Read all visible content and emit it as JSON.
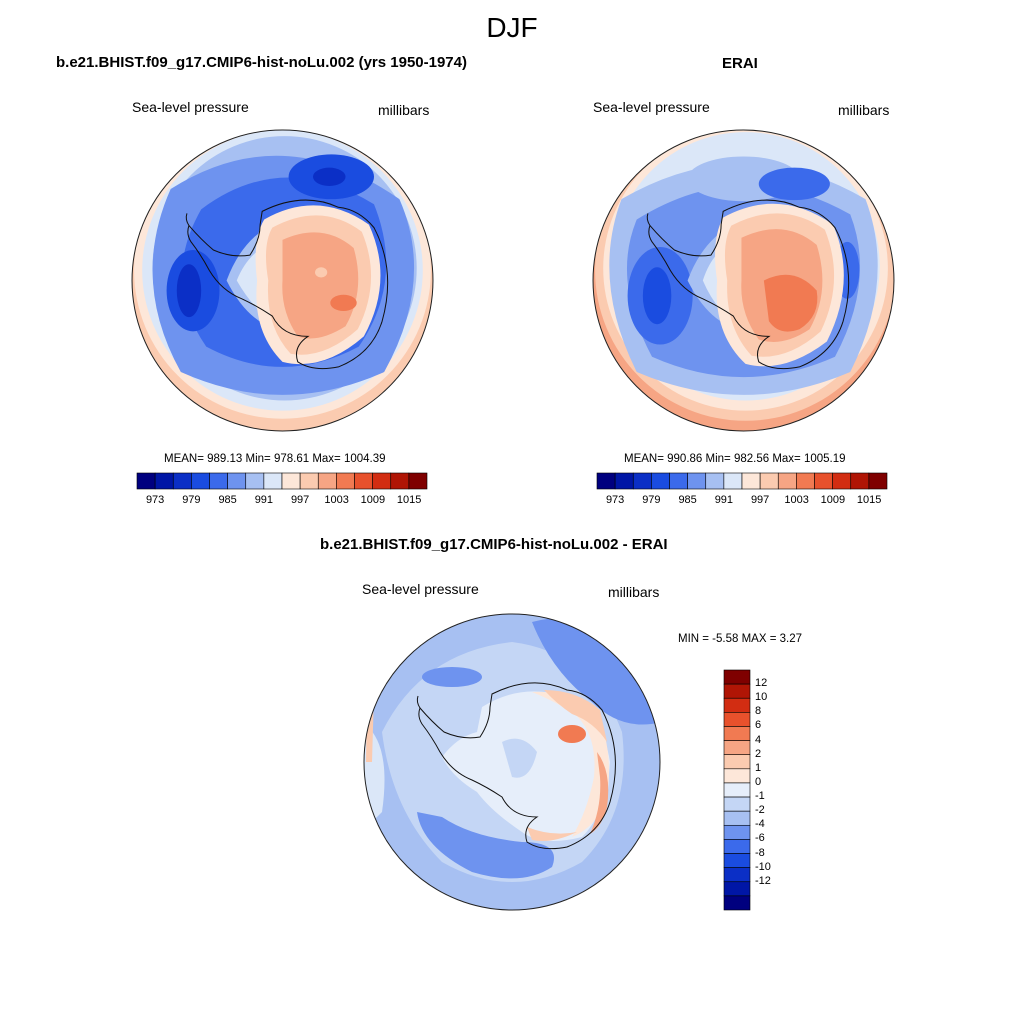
{
  "figure": {
    "season": "DJF"
  },
  "panels": {
    "model": {
      "title": "b.e21.BHIST.f09_g17.CMIP6-hist-noLu.002 (yrs 1950-1974)",
      "variable": "Sea-level pressure",
      "units": "millibars",
      "stats": "MEAN= 989.13  Min= 978.61  Max= 1004.39"
    },
    "obs": {
      "title": "ERAI",
      "variable": "Sea-level pressure",
      "units": "millibars",
      "stats": "MEAN= 990.86  Min= 982.56  Max= 1005.19"
    },
    "diff": {
      "title": "b.e21.BHIST.f09_g17.CMIP6-hist-noLu.002 - ERAI",
      "variable": "Sea-level pressure",
      "units": "millibars",
      "stats": "MIN =  -5.58 MAX =   3.27"
    }
  },
  "colorbars": {
    "abs": {
      "colors": [
        "#00007f",
        "#0016a6",
        "#0b2fc6",
        "#1a4ce0",
        "#3b6aeb",
        "#6e93ef",
        "#a7c0f2",
        "#dbe7f8",
        "#fde7d9",
        "#fbcbb0",
        "#f6a584",
        "#f17a52",
        "#e8512c",
        "#d22d12",
        "#b01505",
        "#7f0000"
      ],
      "labels": [
        "973",
        "979",
        "985",
        "991",
        "997",
        "1003",
        "1009",
        "1015"
      ]
    },
    "diff": {
      "colors": [
        "#7f0000",
        "#b01505",
        "#d22d12",
        "#e8512c",
        "#f17a52",
        "#f6a584",
        "#fbcbb0",
        "#fde7d9",
        "#e6eefa",
        "#c4d6f5",
        "#a7c0f2",
        "#6e93ef",
        "#3b6aeb",
        "#1a4ce0",
        "#0b2fc6",
        "#0016a6",
        "#00007f"
      ],
      "labels": [
        "12",
        "10",
        "8",
        "6",
        "4",
        "2",
        "1",
        "0",
        "-1",
        "-2",
        "-4",
        "-6",
        "-8",
        "-10",
        "-12"
      ]
    }
  }
}
